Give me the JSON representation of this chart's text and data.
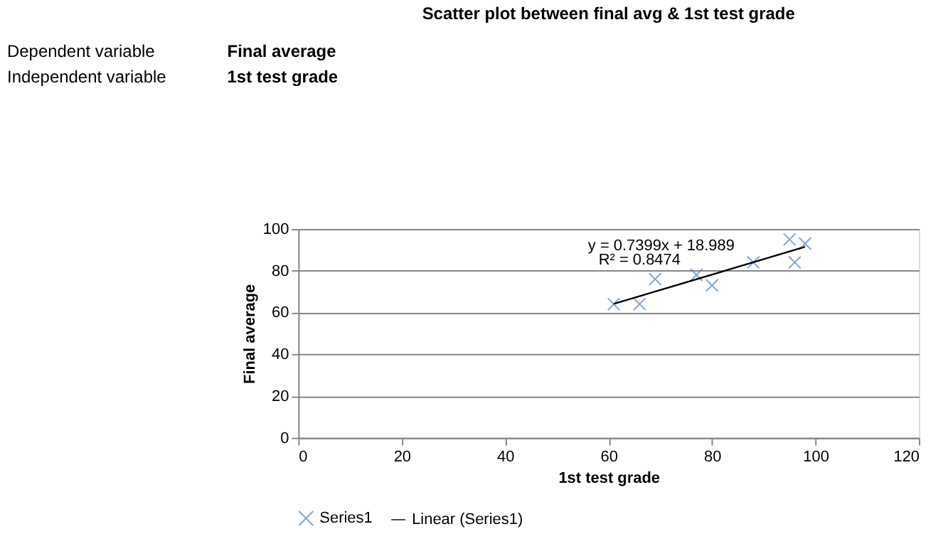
{
  "chart_data": {
    "type": "scatter",
    "title": "Scatter plot between final avg & 1st test grade",
    "xlabel": "1st test grade",
    "ylabel": "Final average",
    "xlim": [
      0,
      120
    ],
    "xticks": [
      0,
      20,
      40,
      60,
      80,
      100,
      120
    ],
    "ylim": [
      0,
      100
    ],
    "yticks": [
      0,
      20,
      40,
      60,
      80,
      100
    ],
    "grid": "y",
    "legend": "bottom",
    "marker": "cross",
    "series": [
      {
        "name": "Series1",
        "color": "#4f81bd",
        "x": [
          61,
          66,
          69,
          77,
          80,
          88,
          95,
          96,
          98
        ],
        "values": [
          64,
          64,
          76,
          78,
          73,
          84,
          95,
          84,
          93
        ]
      },
      {
        "name": "Linear (Series1)",
        "type": "line",
        "color": "#000000",
        "x": [
          61,
          98
        ],
        "values": [
          64.1,
          91.5
        ],
        "marker": "none"
      }
    ],
    "annotations": [
      "y = 0.7399x + 18.989",
      "R² = 0.8474",
      "Dependent variable",
      "Final average",
      "Independent variable",
      "1st test grade"
    ]
  }
}
